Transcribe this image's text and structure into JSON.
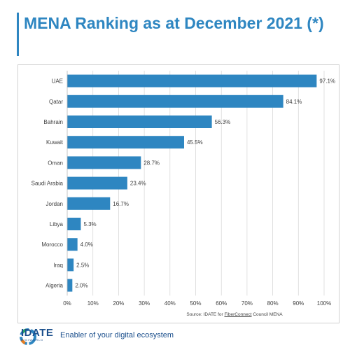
{
  "page": {
    "title": "MENA Ranking as at December 2021 (*)",
    "source_prefix": "Source: IDATE for ",
    "source_link": "FiberConnect",
    "source_suffix": " Council MENA",
    "brand": "IDATE",
    "brand_sub": "DIGIWORLD",
    "tagline": "Enabler of your digital ecosystem"
  },
  "colors": {
    "bar": "#2E86C1",
    "title": "#2E86C1",
    "brand": "#1B4F8C"
  },
  "chart_data": {
    "type": "bar",
    "orientation": "horizontal",
    "categories": [
      "UAE",
      "Qatar",
      "Bahrain",
      "Kuwait",
      "Oman",
      "Saudi Arabia",
      "Jordan",
      "Libya",
      "Morocco",
      "Iraq",
      "Algeria"
    ],
    "values": [
      97.1,
      84.1,
      56.3,
      45.5,
      28.7,
      23.4,
      16.7,
      5.3,
      4.0,
      2.5,
      2.0
    ],
    "value_labels": [
      "97.1%",
      "84.1%",
      "56.3%",
      "45.5%",
      "28.7%",
      "23.4%",
      "16.7%",
      "5.3%",
      "4.0%",
      "2.5%",
      "2.0%"
    ],
    "x_ticks": [
      "0%",
      "10%",
      "20%",
      "30%",
      "40%",
      "50%",
      "60%",
      "70%",
      "80%",
      "90%",
      "100%"
    ],
    "xlim": [
      0,
      100
    ],
    "grid": true
  }
}
